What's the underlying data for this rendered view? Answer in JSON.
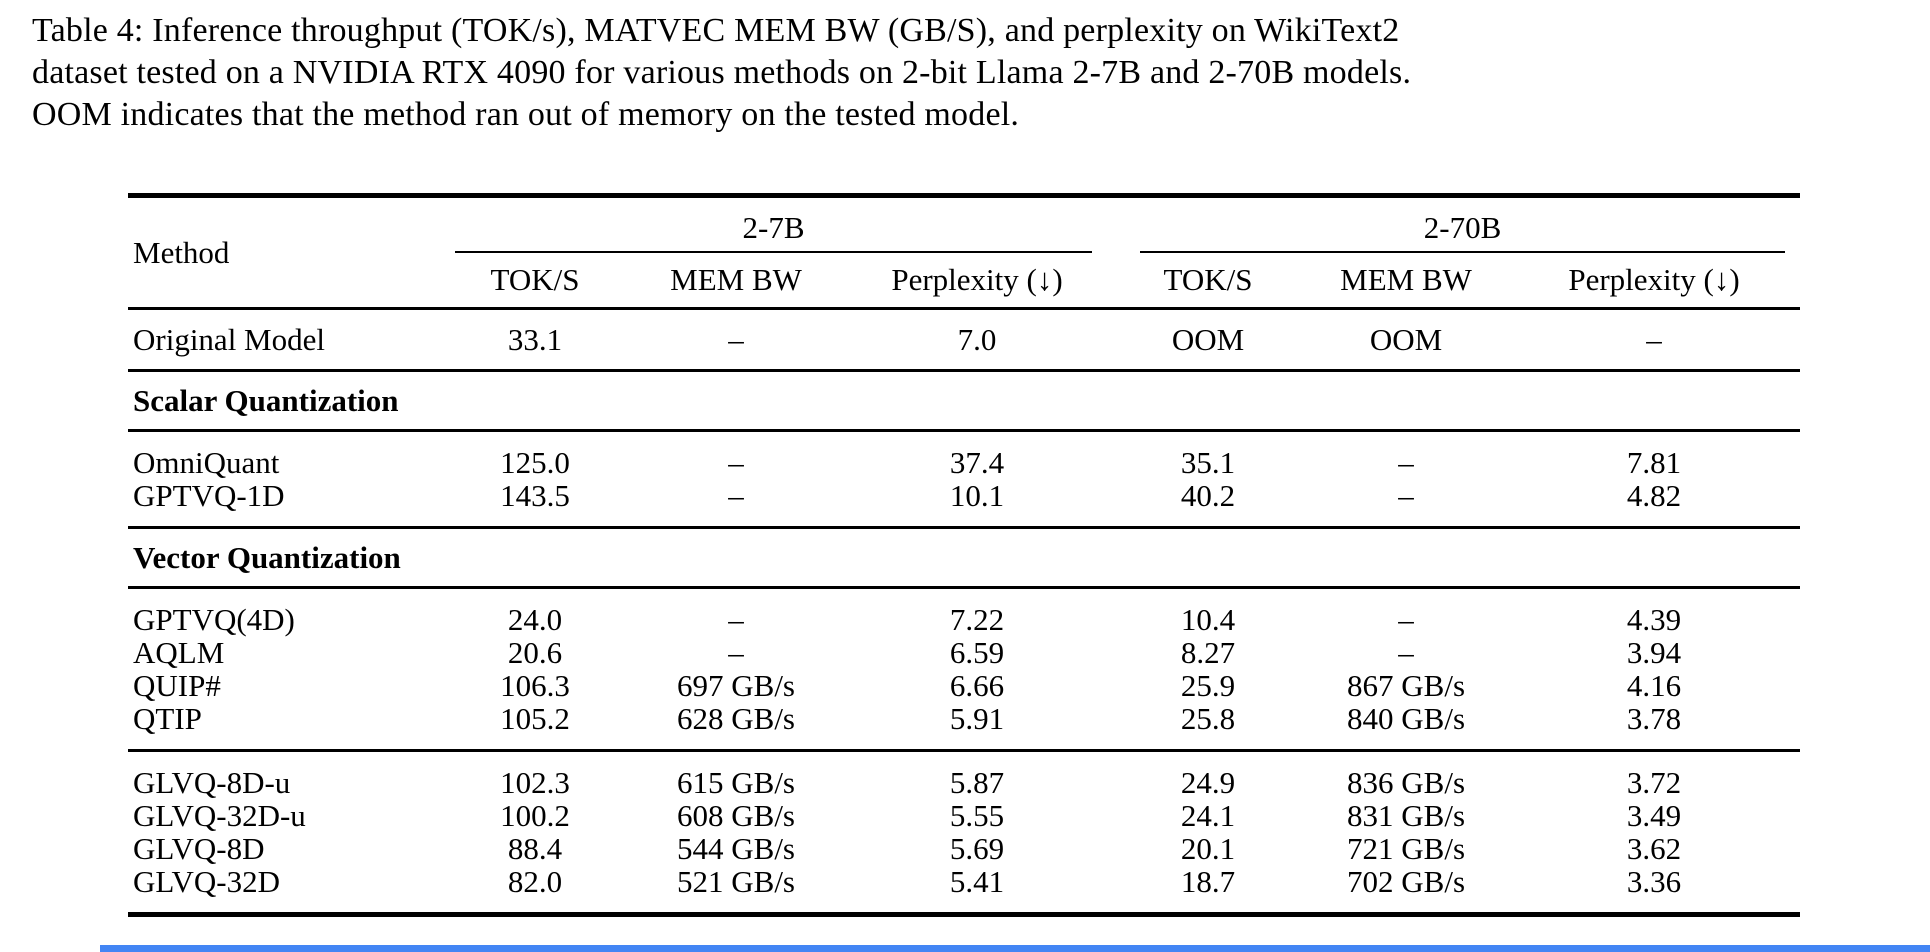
{
  "caption": {
    "lines": [
      "Table 4: Inference throughput (TOK/s), MATVEC MEM BW (GB/S), and perplexity on WikiText2",
      "dataset tested on a NVIDIA RTX 4090 for various methods on 2-bit Llama 2-7B and 2-70B models.",
      "OOM indicates that the method ran out of memory on the tested model."
    ]
  },
  "table": {
    "method_header": "Method",
    "groups": [
      {
        "label": "2-7B",
        "columns": [
          "TOK/S",
          "MEM BW",
          "Perplexity (↓)"
        ]
      },
      {
        "label": "2-70B",
        "columns": [
          "TOK/S",
          "MEM BW",
          "Perplexity (↓)"
        ]
      }
    ],
    "sections": [
      {
        "rows": [
          {
            "method": "Original Model",
            "values": [
              "33.1",
              "–",
              "7.0",
              "OOM",
              "OOM",
              "–"
            ]
          }
        ]
      },
      {
        "label": "Scalar Quantization"
      },
      {
        "rows": [
          {
            "method": "OmniQuant",
            "values": [
              "125.0",
              "–",
              "37.4",
              "35.1",
              "–",
              "7.81"
            ]
          },
          {
            "method": "GPTVQ-1D",
            "values": [
              "143.5",
              "–",
              "10.1",
              "40.2",
              "–",
              "4.82"
            ]
          }
        ]
      },
      {
        "label": "Vector Quantization"
      },
      {
        "rows": [
          {
            "method": "GPTVQ(4D)",
            "values": [
              "24.0",
              "–",
              "7.22",
              "10.4",
              "–",
              "4.39"
            ]
          },
          {
            "method": "AQLM",
            "values": [
              "20.6",
              "–",
              "6.59",
              "8.27",
              "–",
              "3.94"
            ]
          },
          {
            "method": "QUIP#",
            "values": [
              "106.3",
              "697 GB/s",
              "6.66",
              "25.9",
              "867 GB/s",
              "4.16"
            ]
          },
          {
            "method": "QTIP",
            "values": [
              "105.2",
              "628 GB/s",
              "5.91",
              "25.8",
              "840 GB/s",
              "3.78"
            ]
          }
        ]
      },
      {
        "rows": [
          {
            "method": "GLVQ-8D-u",
            "values": [
              "102.3",
              "615 GB/s",
              "5.87",
              "24.9",
              "836 GB/s",
              "3.72"
            ]
          },
          {
            "method": "GLVQ-32D-u",
            "values": [
              "100.2",
              "608 GB/s",
              "5.55",
              "24.1",
              "831 GB/s",
              "3.49"
            ]
          },
          {
            "method": "GLVQ-8D",
            "values": [
              "88.4",
              "544 GB/s",
              "5.69",
              "20.1",
              "721 GB/s",
              "3.62"
            ]
          },
          {
            "method": "GLVQ-32D",
            "values": [
              "82.0",
              "521 GB/s",
              "5.41",
              "18.7",
              "702 GB/s",
              "3.36"
            ]
          }
        ]
      }
    ]
  },
  "colors": {
    "accent_bar": "#4285f4",
    "text": "#000000",
    "background": "#ffffff"
  }
}
